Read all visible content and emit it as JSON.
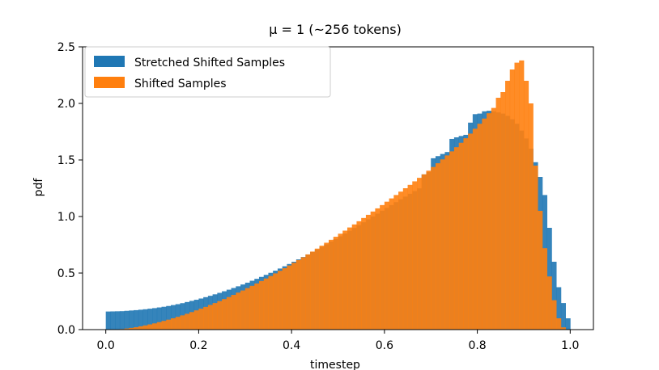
{
  "chart_data": {
    "type": "bar",
    "title": "μ = 1 (~256 tokens)",
    "xlabel": "timestep",
    "ylabel": "pdf",
    "xlim": [
      -0.05,
      1.05
    ],
    "ylim": [
      0,
      2.5
    ],
    "xticks": [
      "0.0",
      "0.2",
      "0.4",
      "0.6",
      "0.8",
      "1.0"
    ],
    "yticks": [
      "0.0",
      "0.5",
      "1.0",
      "1.5",
      "2.0",
      "2.5"
    ],
    "grid": false,
    "legend_position": "upper-left",
    "bin_width": 0.01,
    "x": [
      0.0,
      0.01,
      0.02,
      0.03,
      0.04,
      0.05,
      0.06,
      0.07,
      0.08,
      0.09,
      0.1,
      0.11,
      0.12,
      0.13,
      0.14,
      0.15,
      0.16,
      0.17,
      0.18,
      0.19,
      0.2,
      0.21,
      0.22,
      0.23,
      0.24,
      0.25,
      0.26,
      0.27,
      0.28,
      0.29,
      0.3,
      0.31,
      0.32,
      0.33,
      0.34,
      0.35,
      0.36,
      0.37,
      0.38,
      0.39,
      0.4,
      0.41,
      0.42,
      0.43,
      0.44,
      0.45,
      0.46,
      0.47,
      0.48,
      0.49,
      0.5,
      0.51,
      0.52,
      0.53,
      0.54,
      0.55,
      0.56,
      0.57,
      0.58,
      0.59,
      0.6,
      0.61,
      0.62,
      0.63,
      0.64,
      0.65,
      0.66,
      0.67,
      0.68,
      0.69,
      0.7,
      0.71,
      0.72,
      0.73,
      0.74,
      0.75,
      0.76,
      0.77,
      0.78,
      0.79,
      0.8,
      0.81,
      0.82,
      0.83,
      0.84,
      0.85,
      0.86,
      0.87,
      0.88,
      0.89,
      0.9,
      0.91,
      0.92,
      0.93,
      0.94,
      0.95,
      0.96,
      0.97,
      0.98,
      0.99
    ],
    "series": [
      {
        "name": "Stretched Shifted Samples",
        "color": "#1f77b4",
        "values": [
          0.16,
          0.161,
          0.162,
          0.163,
          0.166,
          0.169,
          0.172,
          0.176,
          0.18,
          0.185,
          0.19,
          0.196,
          0.202,
          0.209,
          0.217,
          0.225,
          0.234,
          0.244,
          0.254,
          0.264,
          0.275,
          0.287,
          0.299,
          0.312,
          0.325,
          0.339,
          0.353,
          0.368,
          0.383,
          0.399,
          0.415,
          0.432,
          0.449,
          0.466,
          0.484,
          0.502,
          0.521,
          0.54,
          0.56,
          0.58,
          0.6,
          0.621,
          0.642,
          0.664,
          0.686,
          0.708,
          0.731,
          0.754,
          0.778,
          0.801,
          0.825,
          0.85,
          0.874,
          0.899,
          0.924,
          0.949,
          0.975,
          1.0,
          1.025,
          1.051,
          1.076,
          1.101,
          1.127,
          1.152,
          1.176,
          1.201,
          1.225,
          1.249,
          1.372,
          1.394,
          1.515,
          1.534,
          1.553,
          1.57,
          1.686,
          1.7,
          1.712,
          1.722,
          1.83,
          1.905,
          1.91,
          1.93,
          1.935,
          1.93,
          1.92,
          1.91,
          1.89,
          1.86,
          1.82,
          1.76,
          1.69,
          1.6,
          1.48,
          1.35,
          1.19,
          0.9,
          0.6,
          0.375,
          0.235,
          0.1
        ]
      },
      {
        "name": "Shifted Samples",
        "color": "#ff7f0e",
        "values": [
          0.0,
          0.001,
          0.002,
          0.005,
          0.01,
          0.015,
          0.021,
          0.029,
          0.037,
          0.046,
          0.055,
          0.066,
          0.077,
          0.088,
          0.1,
          0.113,
          0.126,
          0.14,
          0.155,
          0.17,
          0.185,
          0.201,
          0.218,
          0.235,
          0.252,
          0.27,
          0.288,
          0.307,
          0.327,
          0.346,
          0.367,
          0.387,
          0.408,
          0.43,
          0.452,
          0.474,
          0.497,
          0.52,
          0.543,
          0.567,
          0.591,
          0.615,
          0.64,
          0.665,
          0.69,
          0.716,
          0.742,
          0.768,
          0.794,
          0.821,
          0.848,
          0.875,
          0.903,
          0.93,
          0.958,
          0.987,
          1.015,
          1.044,
          1.072,
          1.101,
          1.131,
          1.16,
          1.19,
          1.22,
          1.25,
          1.28,
          1.311,
          1.342,
          1.373,
          1.405,
          1.438,
          1.471,
          1.505,
          1.54,
          1.576,
          1.613,
          1.652,
          1.692,
          1.733,
          1.776,
          1.82,
          1.866,
          1.913,
          1.96,
          2.05,
          2.1,
          2.2,
          2.3,
          2.36,
          2.38,
          2.2,
          2.0,
          1.45,
          1.05,
          0.72,
          0.47,
          0.26,
          0.1,
          0.02,
          0.0
        ]
      }
    ]
  }
}
